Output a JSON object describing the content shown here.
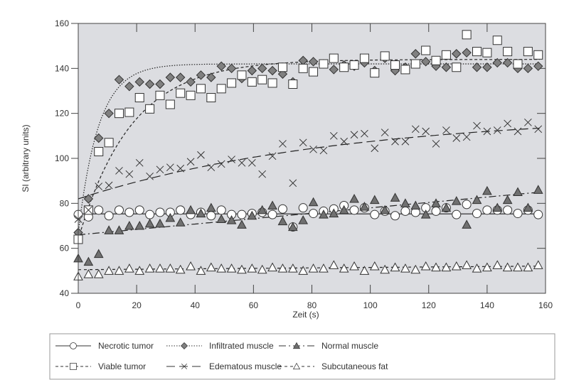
{
  "chart_data": {
    "type": "scatter",
    "title": "",
    "xlabel": "Zeit (s)",
    "ylabel": "SI (arbitrary units)",
    "xlim": [
      0,
      160
    ],
    "ylim": [
      40,
      160
    ],
    "xticks": [
      0,
      20,
      40,
      60,
      80,
      100,
      120,
      140,
      160
    ],
    "yticks": [
      40,
      60,
      80,
      100,
      120,
      140,
      160
    ],
    "legend_position": "bottom",
    "plot_background": "#dcdde1",
    "time_step": 3.5,
    "series": [
      {
        "name": "Necrotic tumor",
        "marker": "circle",
        "fill": "#ffffff",
        "fit": {
          "kind": "linear",
          "a": 75.3,
          "b": 0.0
        },
        "values": [
          75,
          74,
          77,
          74.5,
          77,
          76,
          77,
          75,
          76,
          76,
          77,
          75,
          76,
          74.5,
          77,
          75,
          75,
          75.5,
          76,
          75,
          77.5,
          69.5,
          78,
          75.5,
          76.5,
          77.5,
          79,
          77,
          78,
          75,
          76.5,
          74.5,
          76.5,
          76,
          78,
          76.5,
          78,
          75,
          79.5,
          75.5,
          77,
          77,
          77,
          75.5,
          77,
          75
        ]
      },
      {
        "name": "Infiltrated muscle",
        "marker": "diamond",
        "fill": "#808080",
        "fit": {
          "kind": "exp",
          "a": 67,
          "b": 75,
          "tau": 7
        },
        "values": [
          67,
          82,
          109,
          120,
          135,
          132,
          134,
          133,
          133,
          136,
          136,
          134,
          137,
          136,
          141,
          140,
          135.5,
          139,
          140,
          139,
          137.5,
          134,
          143.5,
          143,
          142,
          139.5,
          141.5,
          141,
          142.5,
          139,
          144.5,
          139,
          140.5,
          146.5,
          143,
          141,
          140.5,
          146.5,
          147,
          140.5,
          140.5,
          142.5,
          142.5,
          140,
          140,
          141
        ]
      },
      {
        "name": "Normal muscle",
        "marker": "triangle",
        "fill": "#707070",
        "fit": {
          "kind": "linear",
          "a": 66,
          "b": 0.12
        },
        "values": [
          55.5,
          54,
          57.5,
          68,
          68,
          70,
          70,
          71,
          71,
          73.5,
          71.5,
          77,
          75.5,
          78,
          73,
          72.5,
          70.5,
          74.5,
          77,
          79,
          72,
          69.5,
          72.5,
          80.5,
          75,
          75.5,
          77,
          82,
          78.5,
          81.5,
          77,
          82.5,
          80,
          79,
          75,
          80,
          78,
          81,
          70.5,
          81.5,
          85.5,
          78,
          81.5,
          85,
          78,
          86
        ]
      },
      {
        "name": "Viable tumor",
        "marker": "square",
        "fill": "#ffffff",
        "fit": {
          "kind": "exp",
          "a": 64,
          "b": 80,
          "tau": 18
        },
        "values": [
          64,
          77,
          103,
          107,
          120,
          120.5,
          127,
          122,
          128,
          124,
          129,
          128,
          131,
          127,
          131,
          133.5,
          137,
          134,
          135,
          133.5,
          140.5,
          133,
          140,
          138.5,
          142,
          144.5,
          140.5,
          141.5,
          144.5,
          138,
          145.5,
          141.5,
          139.5,
          142,
          148,
          143.5,
          146,
          140.5,
          155,
          147.5,
          147,
          152.5,
          147.5,
          142,
          147.5,
          146
        ]
      },
      {
        "name": "Edematous muscle",
        "marker": "cross",
        "fill": "none",
        "fit": {
          "kind": "exp",
          "a": 82,
          "b": 38,
          "tau": 90
        },
        "values": [
          73,
          77,
          87.5,
          88,
          94.5,
          93,
          98,
          92,
          95,
          96,
          95.5,
          98.5,
          101.5,
          96,
          97.5,
          99.5,
          98,
          98,
          93,
          101,
          106.5,
          89,
          107,
          104,
          103.5,
          110,
          107.5,
          110.5,
          111,
          104.5,
          111.5,
          107.5,
          107.5,
          113,
          112,
          106.5,
          112.5,
          109,
          109.5,
          114.5,
          112,
          112.5,
          115.5,
          112,
          116,
          113
        ]
      },
      {
        "name": "Subcutaneous fat",
        "marker": "triangle",
        "fill": "#ffffff",
        "fit": {
          "kind": "linear",
          "a": 50.5,
          "b": 0.01
        },
        "values": [
          47.5,
          48.5,
          48.5,
          50,
          50,
          51,
          50,
          51,
          51,
          51,
          50.5,
          52,
          50,
          51.5,
          51,
          51,
          50.5,
          51,
          50.5,
          51.5,
          51,
          51,
          50,
          51,
          51,
          52.5,
          51,
          52,
          50,
          52,
          50.5,
          51.5,
          51,
          50.5,
          52,
          51.5,
          51.5,
          52,
          52.5,
          51,
          51.5,
          52.5,
          51.5,
          51.5,
          51.5,
          52.5
        ]
      }
    ]
  }
}
